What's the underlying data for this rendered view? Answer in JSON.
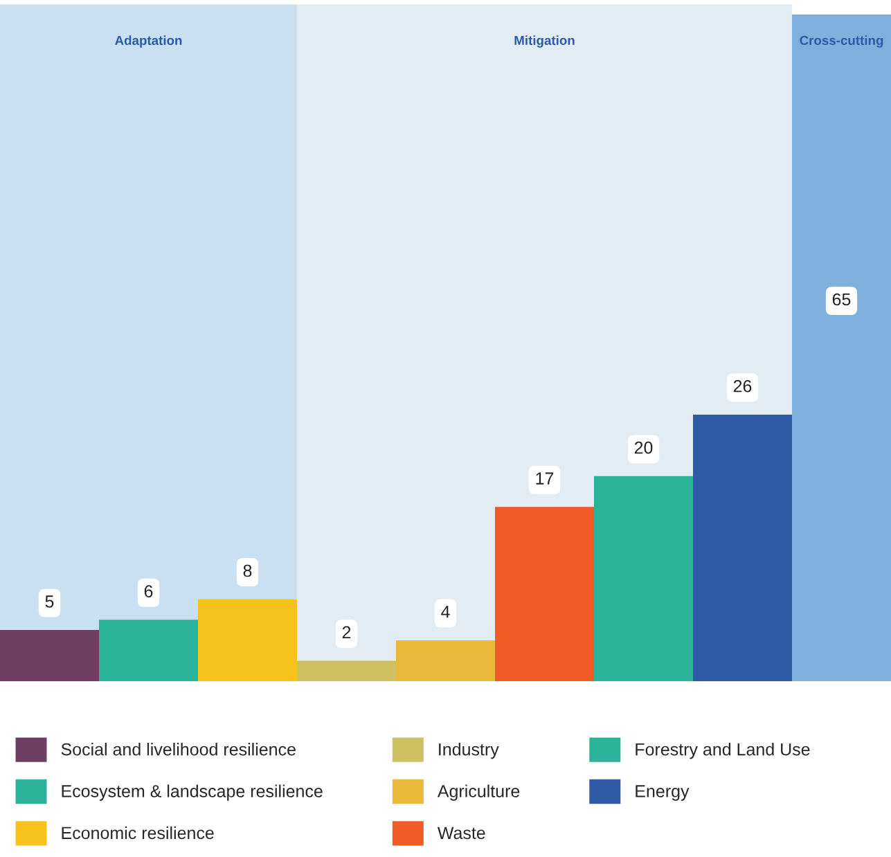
{
  "chart_data": {
    "type": "bar",
    "categories": [
      null,
      null,
      null,
      null,
      null,
      null,
      null,
      null,
      null
    ],
    "stacked": true,
    "series": [
      {
        "name": "Social and livelihood resilience",
        "color": "#6e3f63",
        "values": [
          5,
          null,
          null,
          null,
          null,
          null,
          null,
          null,
          null
        ]
      },
      {
        "name": "Ecosystem & landscape resilience",
        "color": "#2bb39a",
        "values": [
          null,
          6,
          null,
          null,
          null,
          null,
          null,
          null,
          null
        ]
      },
      {
        "name": "Economic resilience",
        "color": "#f8c21c",
        "values": [
          null,
          null,
          8,
          null,
          null,
          null,
          null,
          null,
          null
        ]
      },
      {
        "name": "Industry",
        "color": "#cfc062",
        "values": [
          null,
          null,
          null,
          2,
          null,
          null,
          null,
          null,
          null
        ]
      },
      {
        "name": "Agriculture",
        "color": "#e9b93a",
        "values": [
          null,
          null,
          null,
          null,
          4,
          null,
          null,
          null,
          null
        ]
      },
      {
        "name": "Waste",
        "color": "#f05a24",
        "values": [
          null,
          null,
          null,
          null,
          null,
          17,
          null,
          null,
          null
        ]
      },
      {
        "name": "Forestry and Land Use",
        "color": "#2bb39a",
        "values": [
          null,
          null,
          null,
          null,
          null,
          null,
          20,
          null,
          null
        ]
      },
      {
        "name": "Energy",
        "color": "#2f5aa6",
        "values": [
          null,
          null,
          null,
          null,
          null,
          null,
          null,
          26,
          null
        ]
      },
      {
        "color": "#7fafdd",
        "values": [
          null,
          null,
          null,
          null,
          null,
          null,
          null,
          null,
          65
        ]
      }
    ],
    "annotations": [
      "Adaptation",
      "Mitigation",
      "Cross-cutting"
    ],
    "ylim": [
      0,
      66
    ],
    "data_labels": true,
    "legend": "bottom"
  }
}
